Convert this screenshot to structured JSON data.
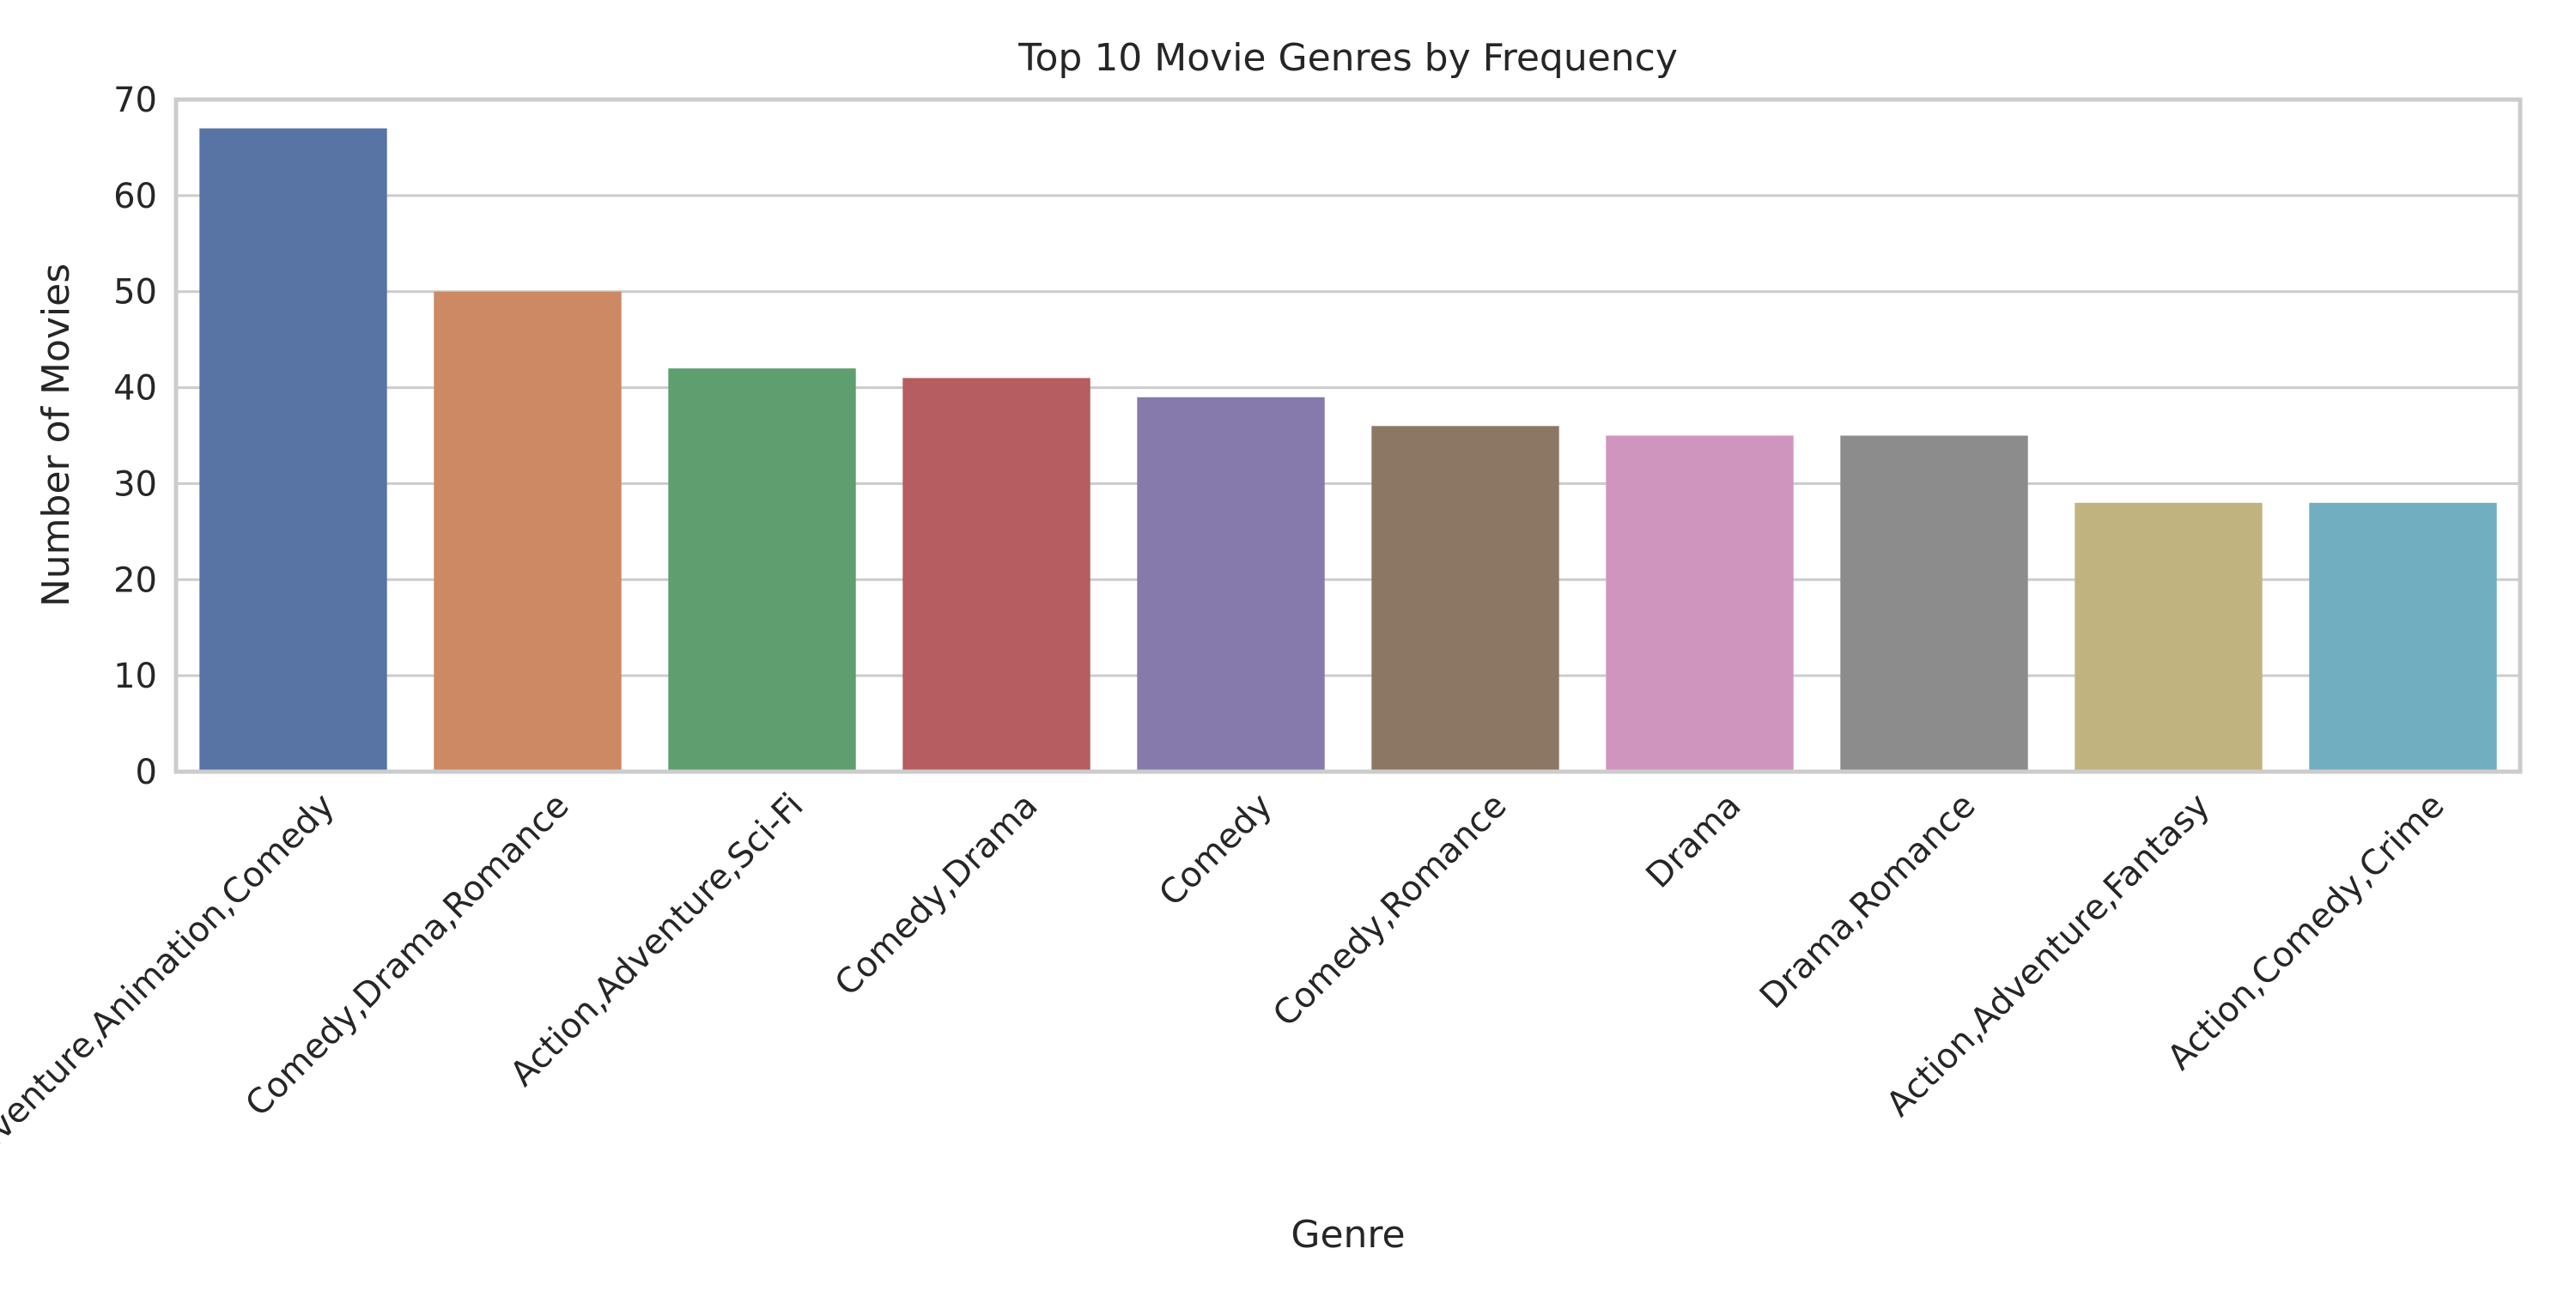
{
  "chart_data": {
    "type": "bar",
    "title": "Top 10 Movie Genres by Frequency",
    "xlabel": "Genre",
    "ylabel": "Number of Movies",
    "ylim": [
      0,
      70
    ],
    "yticks": [
      0,
      10,
      20,
      30,
      40,
      50,
      60,
      70
    ],
    "grid": true,
    "legend": "none",
    "categories": [
      "Adventure,Animation,Comedy",
      "Comedy,Drama,Romance",
      "Action,Adventure,Sci-Fi",
      "Comedy,Drama",
      "Comedy",
      "Comedy,Romance",
      "Drama",
      "Drama,Romance",
      "Action,Adventure,Fantasy",
      "Action,Comedy,Crime"
    ],
    "values": [
      67,
      50,
      42,
      41,
      39,
      36,
      35,
      35,
      28,
      28
    ],
    "colors": [
      "#5874a5",
      "#cc8963",
      "#5f9e6e",
      "#b55d60",
      "#857aab",
      "#8c7765",
      "#d095bf",
      "#8c8c8c",
      "#c1b37f",
      "#71aec0"
    ]
  }
}
